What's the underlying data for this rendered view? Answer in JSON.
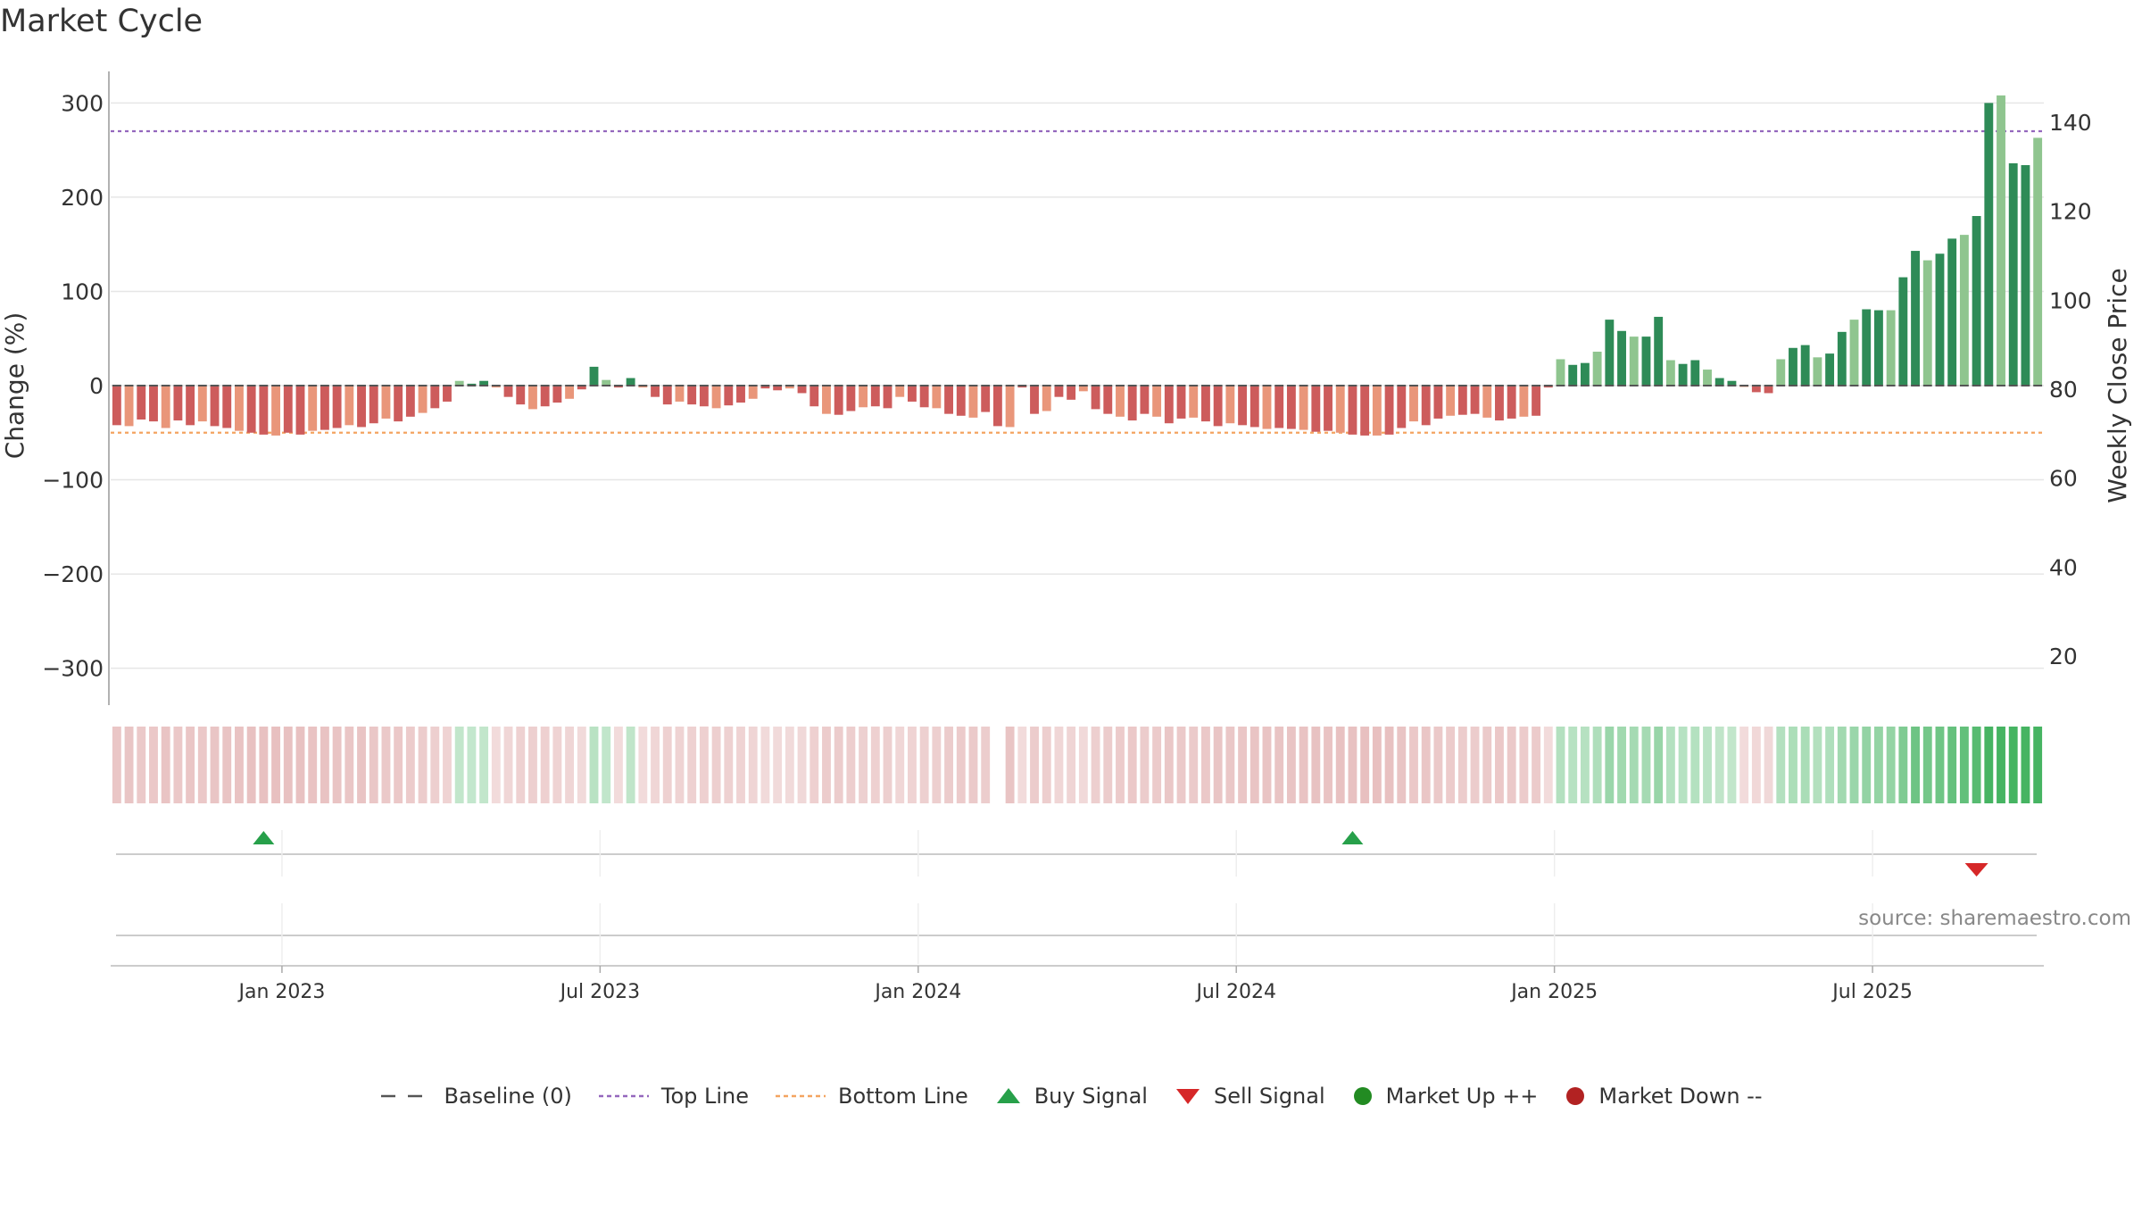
{
  "chart_data": {
    "type": "bar",
    "title": "Market Cycle",
    "source": "source: sharemaestro.com",
    "ylabel": "Change (%)",
    "y2label": "Weekly Close Price",
    "ylim": [
      -330,
      335
    ],
    "yticks": [
      300,
      200,
      100,
      0,
      -100,
      -200,
      -300
    ],
    "ytick_labels": [
      "300",
      "200",
      "100",
      "0",
      "−100",
      "−200",
      "−300"
    ],
    "y2ticks": [
      140,
      120,
      100,
      80,
      60,
      40,
      20
    ],
    "top_line": 270,
    "bottom_line": -50,
    "x_labels": [
      "Jan 2023",
      "Jul 2023",
      "Jan 2024",
      "Jul 2024",
      "Jan 2025",
      "Jul 2025"
    ],
    "x_tick_weeks": [
      14,
      40,
      66,
      92,
      118,
      144
    ],
    "values": [
      -42,
      -43,
      -36,
      -38,
      -45,
      -37,
      -42,
      -38,
      -43,
      -45,
      -48,
      -50,
      -52,
      -53,
      -50,
      -52,
      -48,
      -47,
      -45,
      -42,
      -44,
      -40,
      -35,
      -38,
      -33,
      -29,
      -24,
      -17,
      5,
      2,
      5,
      -2,
      -12,
      -20,
      -25,
      -22,
      -18,
      -14,
      -4,
      20,
      6,
      -2,
      8,
      -2,
      -12,
      -20,
      -17,
      -20,
      -22,
      -24,
      -21,
      -18,
      -14,
      -3,
      -5,
      -3,
      -8,
      -22,
      -30,
      -31,
      -27,
      -23,
      -22,
      -24,
      -12,
      -17,
      -23,
      -24,
      -30,
      -32,
      -34,
      -28,
      -43,
      -44,
      -2,
      -30,
      -27,
      -12,
      -15,
      -6,
      -25,
      -30,
      -33,
      -37,
      -30,
      -33,
      -40,
      -35,
      -34,
      -38,
      -43,
      -40,
      -42,
      -44,
      -46,
      -45,
      -46,
      -47,
      -49,
      -48,
      -50,
      -52,
      -53,
      -53,
      -52,
      -45,
      -38,
      -42,
      -35,
      -32,
      -31,
      -30,
      -34,
      -37,
      -35,
      -33,
      -32,
      -2,
      28,
      22,
      24,
      36,
      70,
      58,
      52,
      52,
      73,
      27,
      23,
      27,
      17,
      8,
      5,
      -1,
      -7,
      -8,
      28,
      40,
      43,
      30,
      34,
      57,
      70,
      81,
      80,
      80,
      115,
      143,
      133,
      140,
      156,
      160,
      180,
      300,
      308,
      236,
      234,
      263
    ],
    "legend": [
      "Baseline (0)",
      "Top Line",
      "Bottom Line",
      "Buy Signal",
      "Sell Signal",
      "Market Up ++",
      "Market Down --"
    ],
    "buy_signal_weeks": [
      12,
      101
    ],
    "sell_signal_weeks": [
      152
    ],
    "gap_week": 72,
    "colors": {
      "strong_up": "#2e8b57",
      "light_up": "#8fc58f",
      "strong_down": "#cd5c5c",
      "light_down": "#e9967a",
      "top_line": "#9467bd",
      "bottom_line": "#f4a460",
      "buy": "#27a04a",
      "sell": "#d62728",
      "market_up": "#228b22",
      "market_down": "#b22222",
      "baseline": "#555555",
      "grid": "#e6e6e6"
    }
  }
}
